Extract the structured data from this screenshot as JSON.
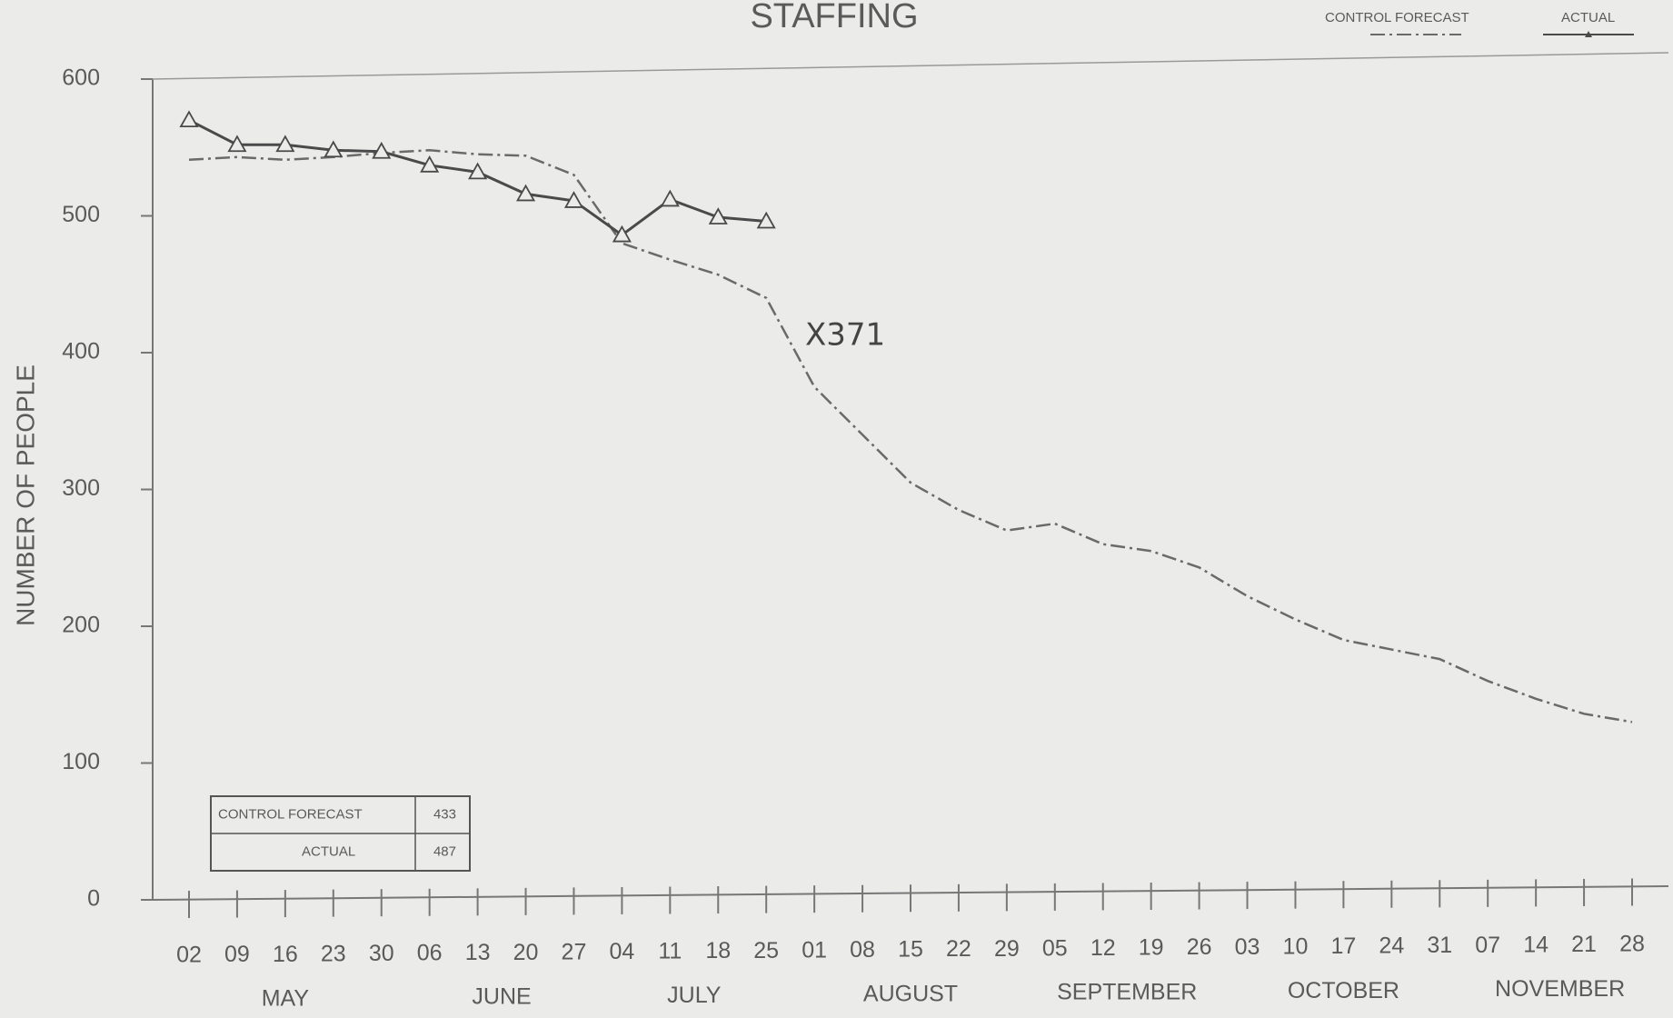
{
  "chart_data": {
    "type": "line",
    "title": "STAFFING",
    "y_label": "NUMBER OF PEOPLE",
    "categories": [
      "02",
      "09",
      "16",
      "23",
      "30",
      "06",
      "13",
      "20",
      "27",
      "04",
      "11",
      "18",
      "25",
      "01",
      "08",
      "15",
      "22",
      "29",
      "05",
      "12",
      "19",
      "26",
      "03",
      "10",
      "17",
      "24",
      "31",
      "07",
      "14",
      "21",
      "28"
    ],
    "months": [
      {
        "label": "MAY",
        "weeks": 5
      },
      {
        "label": "JUNE",
        "weeks": 4
      },
      {
        "label": "JULY",
        "weeks": 4
      },
      {
        "label": "AUGUST",
        "weeks": 5
      },
      {
        "label": "SEPTEMBER",
        "weeks": 4
      },
      {
        "label": "OCTOBER",
        "weeks": 5
      },
      {
        "label": "NOVEMBER",
        "weeks": 4
      }
    ],
    "series": [
      {
        "name": "CONTROL FORECAST",
        "color": "#6a6a6a",
        "values": [
          541,
          543,
          541,
          543,
          546,
          548,
          545,
          544,
          530,
          480,
          468,
          457,
          440,
          375,
          340,
          305,
          285,
          270,
          275,
          260,
          255,
          243,
          222,
          205,
          190,
          183,
          176,
          160,
          147,
          136,
          130
        ]
      },
      {
        "name": "ACTUAL",
        "color": "#4a4a4a",
        "values": [
          570,
          552,
          552,
          548,
          547,
          537,
          532,
          516,
          511,
          486,
          512,
          499,
          496,
          null,
          null,
          null,
          null,
          null,
          null,
          null,
          null,
          null,
          null,
          null,
          null,
          null,
          null,
          null,
          null,
          null,
          null
        ]
      }
    ],
    "ylim": [
      0,
      600
    ],
    "yticks": [
      0,
      100,
      200,
      300,
      400,
      500,
      600
    ],
    "annotation": "X371",
    "summary_table": [
      {
        "label": "CONTROL FORECAST",
        "value": 433
      },
      {
        "label": "ACTUAL",
        "value": 487
      }
    ],
    "legend": "top-right"
  }
}
